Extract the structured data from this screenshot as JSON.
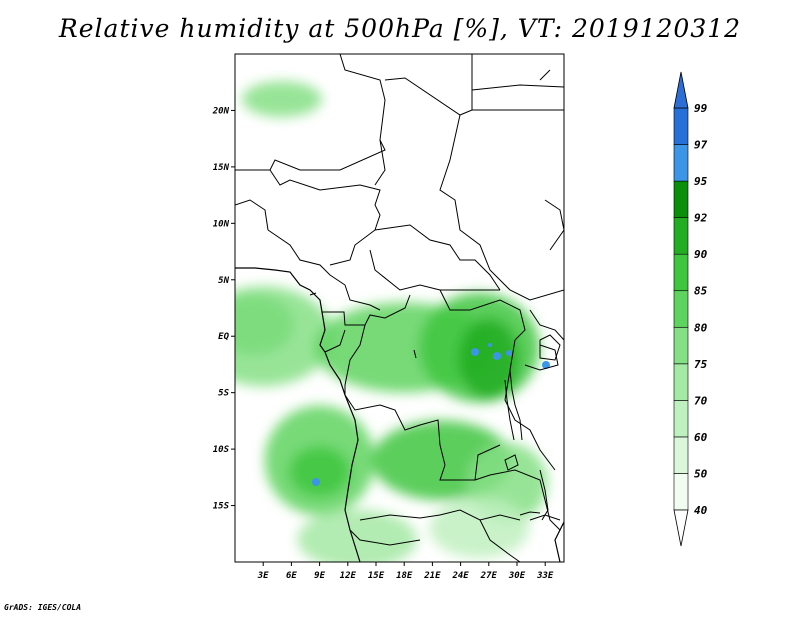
{
  "title": "Relative humidity at 500hPa [%], VT: 2019120312",
  "credit": "GrADS: IGES/COLA",
  "colors": {
    "land_outline": "#000000",
    "frame": "#000000"
  },
  "map": {
    "lon_range": [
      0,
      35
    ],
    "lat_range": [
      -20,
      25
    ],
    "lon_ticks": [
      {
        "value": 3,
        "label": "3E"
      },
      {
        "value": 6,
        "label": "6E"
      },
      {
        "value": 9,
        "label": "9E"
      },
      {
        "value": 12,
        "label": "12E"
      },
      {
        "value": 15,
        "label": "15E"
      },
      {
        "value": 18,
        "label": "18E"
      },
      {
        "value": 21,
        "label": "21E"
      },
      {
        "value": 24,
        "label": "24E"
      },
      {
        "value": 27,
        "label": "27E"
      },
      {
        "value": 30,
        "label": "30E"
      },
      {
        "value": 33,
        "label": "33E"
      }
    ],
    "lat_ticks": [
      {
        "value": 20,
        "label": "20N"
      },
      {
        "value": 15,
        "label": "15N"
      },
      {
        "value": 10,
        "label": "10N"
      },
      {
        "value": 5,
        "label": "5N"
      },
      {
        "value": 0,
        "label": "EQ"
      },
      {
        "value": -5,
        "label": "5S"
      },
      {
        "value": -10,
        "label": "10S"
      },
      {
        "value": -15,
        "label": "15S"
      }
    ]
  },
  "colorbar": {
    "levels": [
      {
        "label": "40",
        "color": "#f2fdf2"
      },
      {
        "label": "50",
        "color": "#daf7da"
      },
      {
        "label": "60",
        "color": "#bff0bf"
      },
      {
        "label": "70",
        "color": "#a4e9a4"
      },
      {
        "label": "75",
        "color": "#85df85"
      },
      {
        "label": "80",
        "color": "#5fd35f"
      },
      {
        "label": "85",
        "color": "#3fc63f"
      },
      {
        "label": "90",
        "color": "#22ad22"
      },
      {
        "label": "92",
        "color": "#0a8f0a"
      },
      {
        "label": "95",
        "color": "#3d95e8"
      },
      {
        "label": "97",
        "color": "#2670d9"
      },
      {
        "label": "99",
        "color": "#1f5fbf"
      }
    ],
    "below_color": "#ffffff",
    "above_color": "#2b6fd6"
  },
  "humidity_field": [
    {
      "lon": 2,
      "lat": 1,
      "rx": 40,
      "ry": 30,
      "level": 6
    },
    {
      "lon": 3,
      "lat": 0,
      "rx": 70,
      "ry": 50,
      "level": 4
    },
    {
      "lon": 9,
      "lat": -11,
      "rx": 55,
      "ry": 55,
      "level": 5
    },
    {
      "lon": 9,
      "lat": -12,
      "rx": 30,
      "ry": 25,
      "level": 6
    },
    {
      "lon": 18,
      "lat": -1,
      "rx": 90,
      "ry": 45,
      "level": 5
    },
    {
      "lon": 26,
      "lat": -1,
      "rx": 60,
      "ry": 55,
      "level": 6
    },
    {
      "lon": 27,
      "lat": -2,
      "rx": 30,
      "ry": 40,
      "level": 7
    },
    {
      "lon": 22,
      "lat": -11,
      "rx": 70,
      "ry": 40,
      "level": 6
    },
    {
      "lon": 29,
      "lat": -13,
      "rx": 40,
      "ry": 40,
      "level": 4
    },
    {
      "lon": 5,
      "lat": 21,
      "rx": 40,
      "ry": 18,
      "level": 4
    },
    {
      "lon": 13,
      "lat": -18,
      "rx": 60,
      "ry": 30,
      "level": 3
    },
    {
      "lon": 26,
      "lat": -17,
      "rx": 50,
      "ry": 30,
      "level": 2
    }
  ]
}
